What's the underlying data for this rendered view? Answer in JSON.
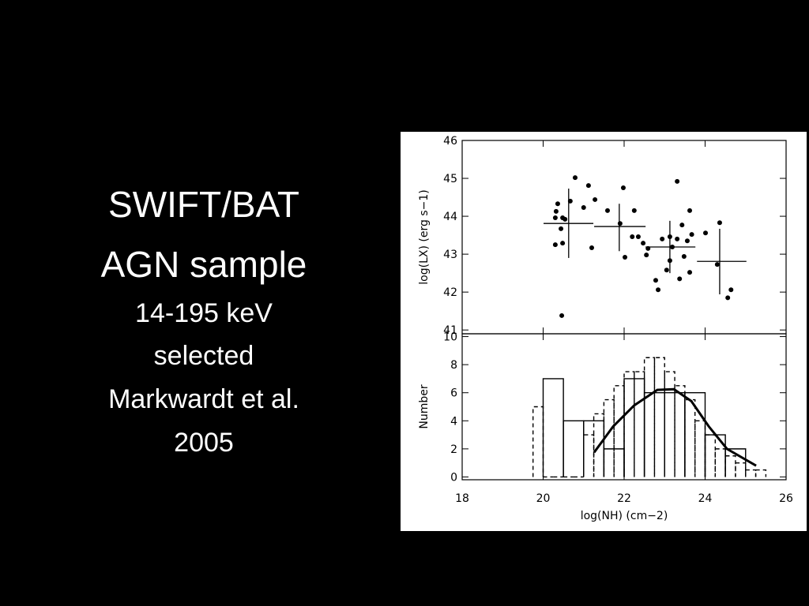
{
  "slide": {
    "title_lines": [
      "SWIFT/BAT",
      "AGN sample"
    ],
    "subtitle_lines": [
      "14-195 keV",
      "selected",
      "Markwardt et al.",
      "2005"
    ]
  },
  "chart_data": [
    {
      "type": "scatter",
      "ylabel": "log(LX) (erg s−1)",
      "xlim": [
        18,
        26
      ],
      "ylim": [
        40.9,
        46
      ],
      "xticks": [
        18,
        20,
        22,
        24,
        26
      ],
      "yticks": [
        41,
        42,
        43,
        44,
        45,
        46
      ],
      "color": "#000000",
      "x": [
        20.32,
        20.36,
        20.48,
        20.79,
        21.12,
        20.67,
        21.0,
        21.28,
        20.3,
        20.54,
        20.3,
        20.48,
        20.44,
        21.2,
        20.46,
        21.59,
        21.98,
        22.25,
        22.2,
        22.35,
        22.47,
        22.02,
        22.55,
        21.9,
        22.59,
        23.31,
        23.62,
        23.43,
        22.94,
        23.13,
        23.31,
        23.56,
        23.67,
        23.19,
        23.48,
        22.78,
        22.84,
        23.05,
        23.37,
        23.62,
        23.13,
        24.01,
        24.36,
        24.3,
        24.56,
        24.64
      ],
      "y": [
        44.13,
        44.33,
        43.96,
        45.02,
        44.81,
        44.4,
        44.23,
        44.44,
        43.96,
        43.92,
        43.25,
        43.29,
        43.67,
        43.17,
        41.38,
        44.15,
        44.75,
        44.15,
        43.46,
        43.46,
        43.29,
        42.92,
        42.98,
        43.81,
        43.15,
        44.92,
        44.15,
        43.77,
        43.4,
        43.46,
        43.4,
        43.35,
        43.52,
        43.19,
        42.94,
        42.31,
        42.06,
        42.58,
        42.35,
        42.52,
        42.83,
        43.56,
        43.83,
        42.73,
        41.85,
        42.06
      ],
      "error_bars": [
        {
          "x": 20.63,
          "y": 43.81,
          "x_low": 20.01,
          "x_high": 21.24,
          "y_low": 42.9,
          "y_high": 44.73
        },
        {
          "x": 21.88,
          "y": 43.73,
          "x_low": 21.26,
          "x_high": 22.53,
          "y_low": 43.08,
          "y_high": 44.33
        },
        {
          "x": 23.13,
          "y": 43.19,
          "x_low": 22.53,
          "x_high": 23.76,
          "y_low": 42.5,
          "y_high": 43.88
        },
        {
          "x": 24.36,
          "y": 42.81,
          "x_low": 23.8,
          "x_high": 25.02,
          "y_low": 41.94,
          "y_high": 43.67
        }
      ]
    },
    {
      "type": "histogram",
      "xlabel": "log(NH) (cm−2)",
      "ylabel": "Number",
      "xlim": [
        18,
        26
      ],
      "ylim": [
        -0.2,
        10.2
      ],
      "xticks": [
        18,
        20,
        22,
        24,
        26
      ],
      "yticks": [
        0,
        2,
        4,
        6,
        8,
        10
      ],
      "series": [
        {
          "style": "solid",
          "color": "#000000",
          "bins": [
            20,
            20.5,
            21,
            21.5,
            22,
            22.5,
            23,
            23.5,
            24,
            24.5,
            25
          ],
          "counts": [
            7,
            4,
            4,
            2,
            7,
            6,
            6,
            6,
            3,
            2
          ]
        },
        {
          "style": "dashed",
          "color": "#000000",
          "bins": [
            19.75,
            20,
            20.25,
            20.5,
            20.75,
            21,
            21.25,
            21.5,
            21.75,
            22,
            22.25,
            22.5,
            22.75,
            23,
            23.25,
            23.5,
            23.75,
            24,
            24.25,
            24.5,
            24.75,
            25,
            25.25,
            25.5
          ],
          "counts": [
            5,
            0,
            0,
            0,
            0,
            3,
            4.5,
            5.5,
            6.5,
            7.5,
            7.5,
            8.5,
            8.5,
            7.5,
            6.5,
            5.5,
            4,
            3,
            2,
            1.5,
            1,
            0.5,
            0.5
          ]
        }
      ],
      "model": {
        "color": "#000000",
        "x": [
          21.26,
          21.73,
          22.25,
          22.82,
          23.23,
          23.66,
          24.09,
          24.54,
          25.26
        ],
        "y": [
          1.75,
          3.6,
          5.1,
          6.2,
          6.25,
          5.4,
          3.6,
          2.0,
          0.8
        ]
      }
    }
  ]
}
